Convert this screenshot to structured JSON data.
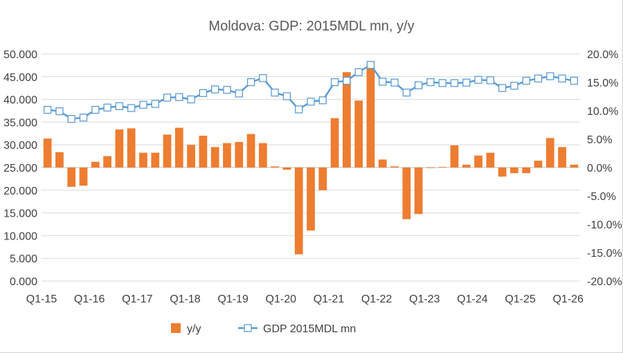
{
  "chart_data": {
    "type": "bar+line",
    "title": "Moldova: GDP: 2015MDL mn, y/y",
    "x_ticks": [
      "Q1-15",
      "Q1-16",
      "Q1-17",
      "Q1-18",
      "Q1-19",
      "Q1-20",
      "Q1-21",
      "Q1-22",
      "Q1-23",
      "Q1-24",
      "Q1-25",
      "Q1-26"
    ],
    "left_axis": {
      "ticks": [
        "50.000",
        "45.000",
        "40.000",
        "35.000",
        "30.000",
        "25.000",
        "20.000",
        "15.000",
        "10.000",
        "5.000",
        "0.000"
      ],
      "range": [
        0,
        50
      ]
    },
    "right_axis": {
      "ticks": [
        "20.0%",
        "15.0%",
        "10.0%",
        "5.0%",
        "0.0%",
        "-5.0%",
        "-10.0%",
        "-15.0%",
        "-20.0%"
      ],
      "range": [
        -20,
        20
      ]
    },
    "legend": {
      "placement": "bottom",
      "entries": [
        "y/y",
        "GDP 2015MDL mn"
      ]
    },
    "colors": {
      "bar": "#ed7d31",
      "line": "#5b9bd5",
      "marker_fill": "#ffffff",
      "grid": "#d9d9d9"
    },
    "grid": true,
    "series": [
      {
        "name": "y/y",
        "type": "bar",
        "axis": "right",
        "values": [
          5.1,
          2.7,
          -3.4,
          -3.2,
          1.0,
          2.0,
          6.7,
          6.9,
          2.6,
          2.6,
          5.8,
          7.0,
          4.0,
          5.6,
          3.6,
          4.3,
          4.5,
          5.9,
          4.3,
          0.2,
          -0.4,
          -15.3,
          -11.1,
          -4.0,
          8.7,
          16.8,
          11.8,
          17.8,
          1.4,
          0.2,
          -9.1,
          -8.2,
          -0.1,
          0.1,
          3.9,
          0.5,
          2.1,
          2.6,
          -1.6,
          -1.0,
          -1.0,
          1.2,
          5.2,
          3.6,
          0.5
        ]
      },
      {
        "name": "GDP 2015MDL mn",
        "type": "line",
        "axis": "left",
        "values": [
          37.7,
          37.4,
          35.7,
          36.0,
          37.7,
          38.2,
          38.5,
          38.1,
          38.8,
          39.0,
          40.4,
          40.5,
          40.0,
          41.4,
          42.2,
          42.1,
          41.3,
          43.8,
          44.7,
          41.5,
          40.7,
          37.8,
          39.5,
          39.8,
          43.8,
          44.1,
          46.0,
          47.6,
          43.9,
          43.7,
          41.5,
          43.1,
          43.8,
          43.6,
          43.6,
          43.7,
          44.3,
          44.2,
          42.5,
          43.0,
          44.1,
          44.6,
          45.1,
          44.6,
          44.1
        ]
      }
    ]
  }
}
